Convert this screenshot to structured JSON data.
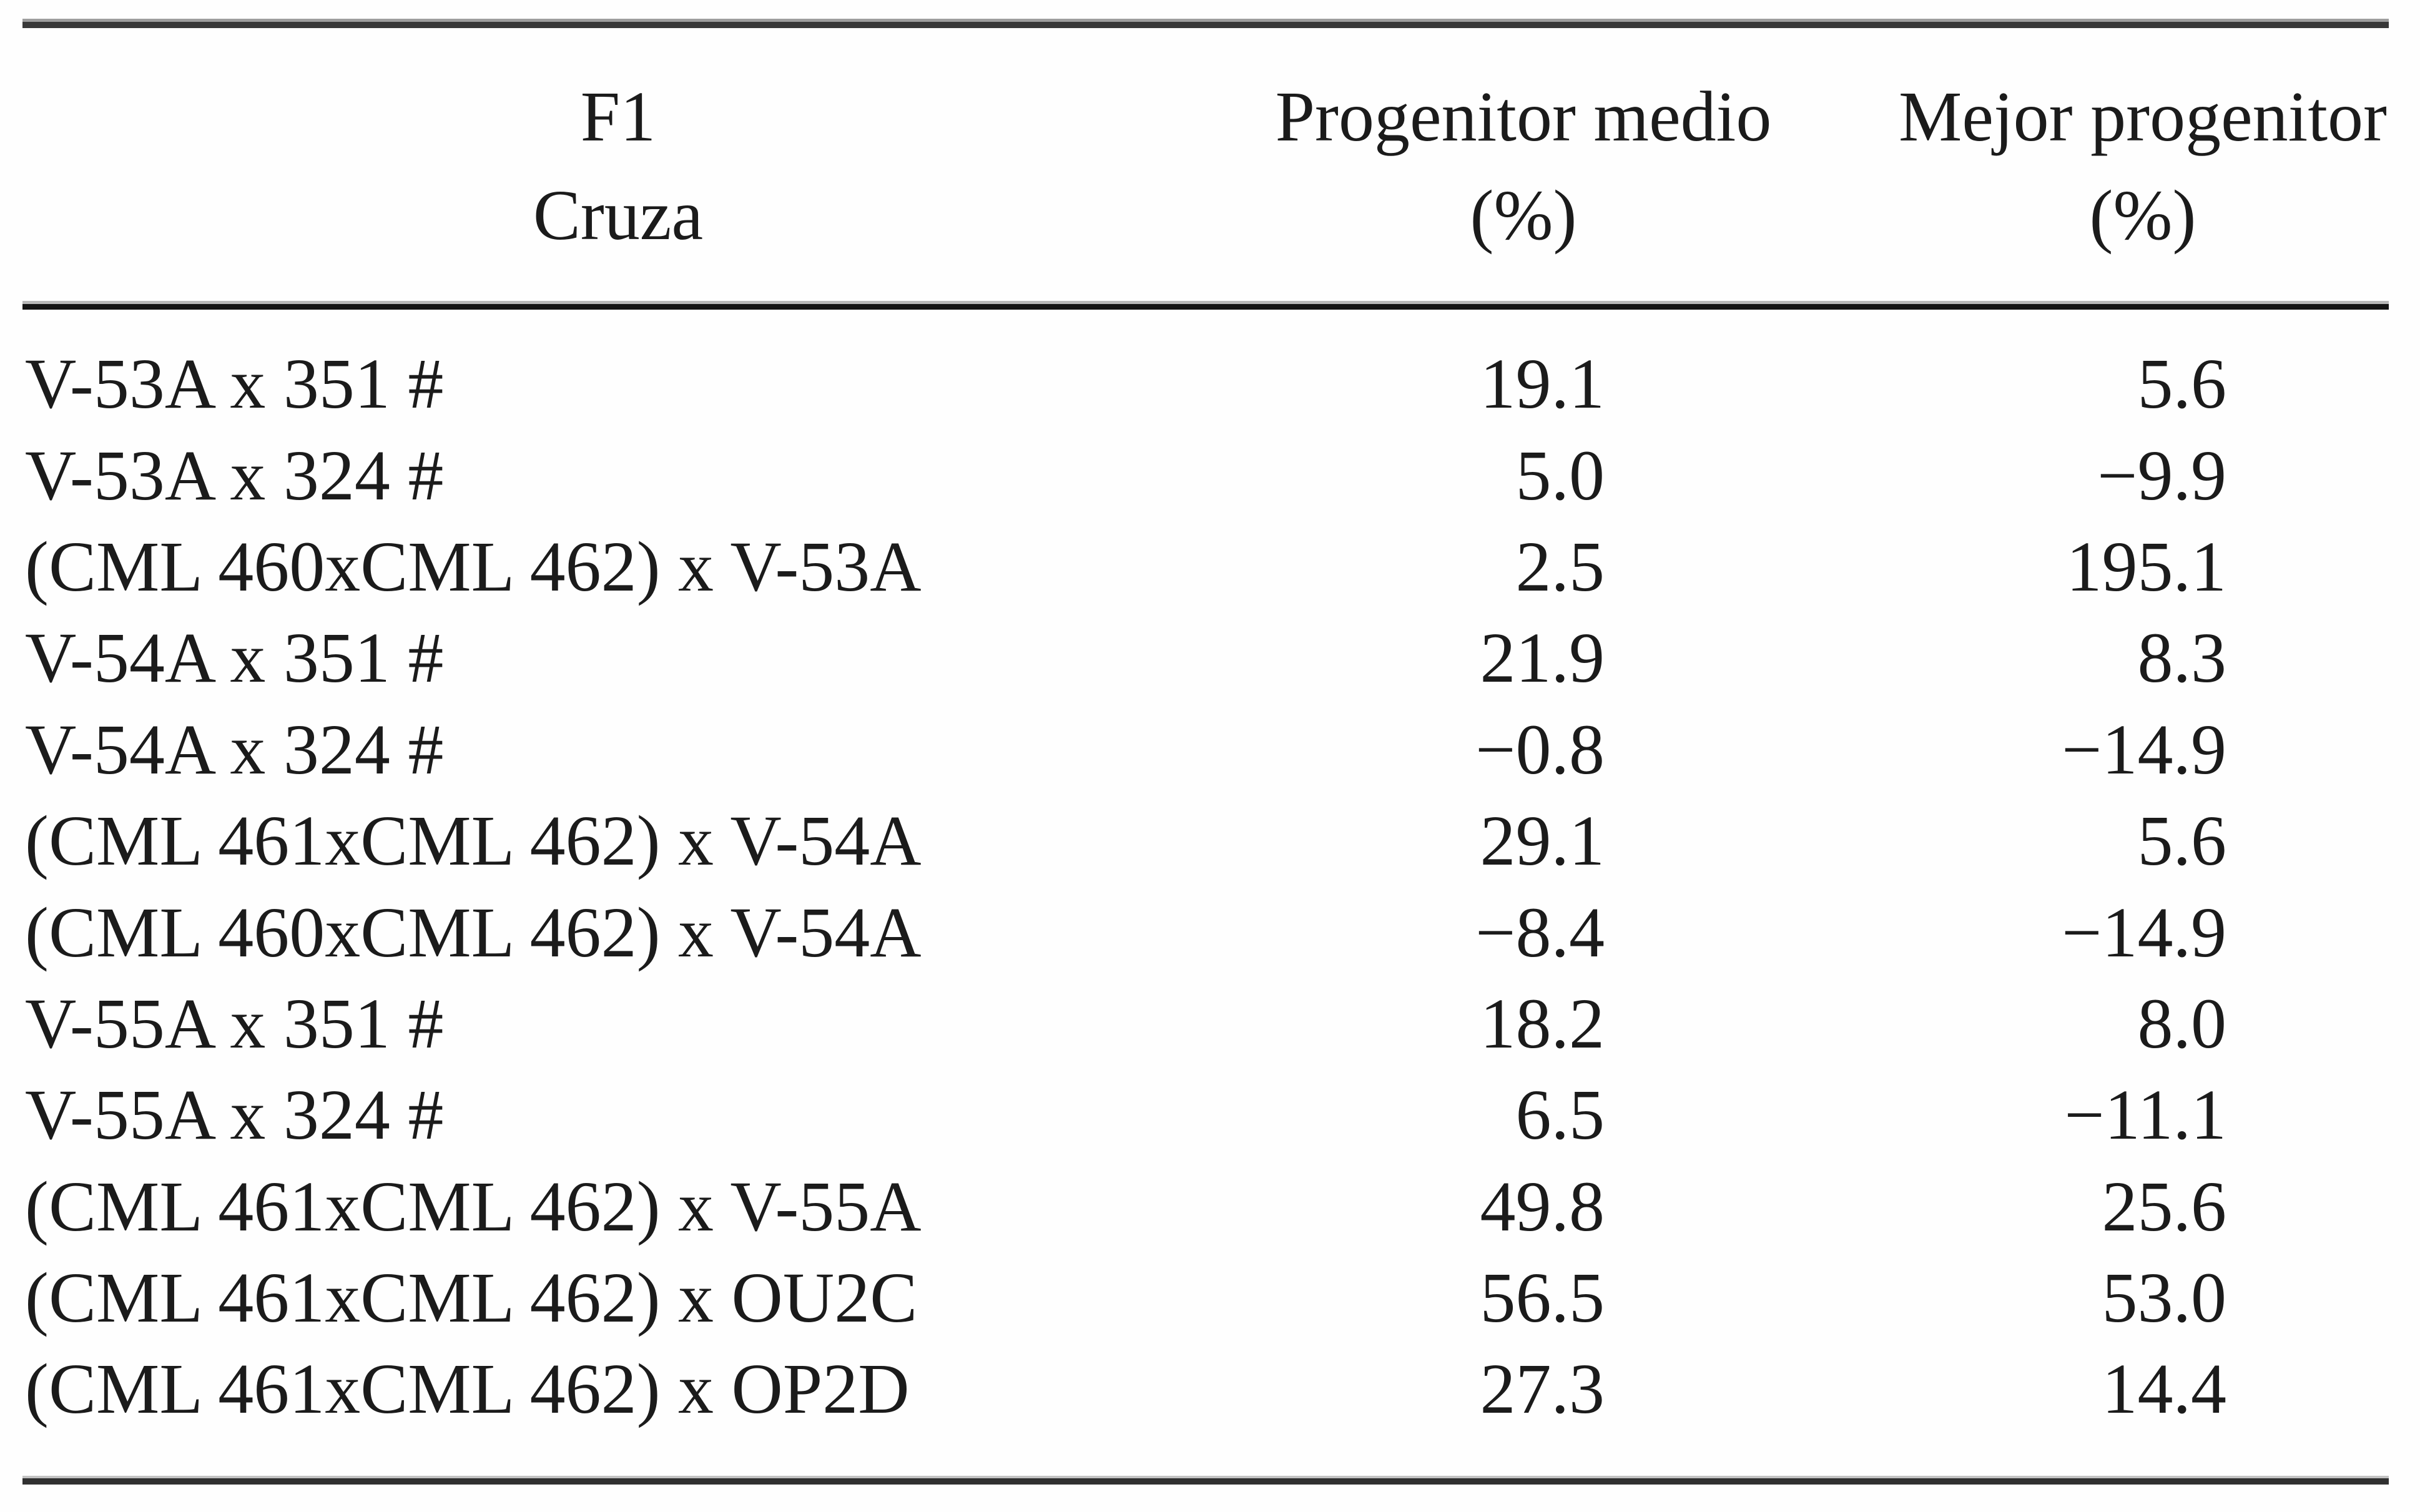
{
  "table": {
    "header": {
      "col1": {
        "line1": "F1",
        "line2": "Cruza"
      },
      "col2": {
        "line1": "Progenitor medio",
        "line2": "(%)"
      },
      "col3": {
        "line1": "Mejor progenitor",
        "line2": "(%)"
      }
    },
    "rows": [
      {
        "cruza": "V-53A x 351 #",
        "progenitor_medio": "19.1",
        "mejor_progenitor": "5.6"
      },
      {
        "cruza": "V-53A x 324 #",
        "progenitor_medio": "5.0",
        "mejor_progenitor": "−9.9"
      },
      {
        "cruza": "(CML 460xCML 462) x V-53A",
        "progenitor_medio": "2.5",
        "mejor_progenitor": "195.1"
      },
      {
        "cruza": "V-54A x 351 #",
        "progenitor_medio": "21.9",
        "mejor_progenitor": "8.3"
      },
      {
        "cruza": "V-54A x 324 #",
        "progenitor_medio": "−0.8",
        "mejor_progenitor": "−14.9"
      },
      {
        "cruza": "(CML 461xCML 462) x V-54A",
        "progenitor_medio": "29.1",
        "mejor_progenitor": "5.6"
      },
      {
        "cruza": "(CML 460xCML 462) x V-54A",
        "progenitor_medio": "−8.4",
        "mejor_progenitor": "−14.9"
      },
      {
        "cruza": "V-55A x 351 #",
        "progenitor_medio": "18.2",
        "mejor_progenitor": "8.0"
      },
      {
        "cruza": "V-55A x 324 #",
        "progenitor_medio": "6.5",
        "mejor_progenitor": "−11.1"
      },
      {
        "cruza": "(CML 461xCML 462) x V-55A",
        "progenitor_medio": "49.8",
        "mejor_progenitor": "25.6"
      },
      {
        "cruza": "(CML 461xCML 462) x OU2C",
        "progenitor_medio": "56.5",
        "mejor_progenitor": "53.0"
      },
      {
        "cruza": "(CML 461xCML 462) x OP2D",
        "progenitor_medio": "27.3",
        "mejor_progenitor": "14.4"
      }
    ]
  },
  "colors": {
    "background": "#fefefe",
    "text": "#1b1b1b",
    "rule_dark": "#383838",
    "rule_black": "#141414"
  }
}
